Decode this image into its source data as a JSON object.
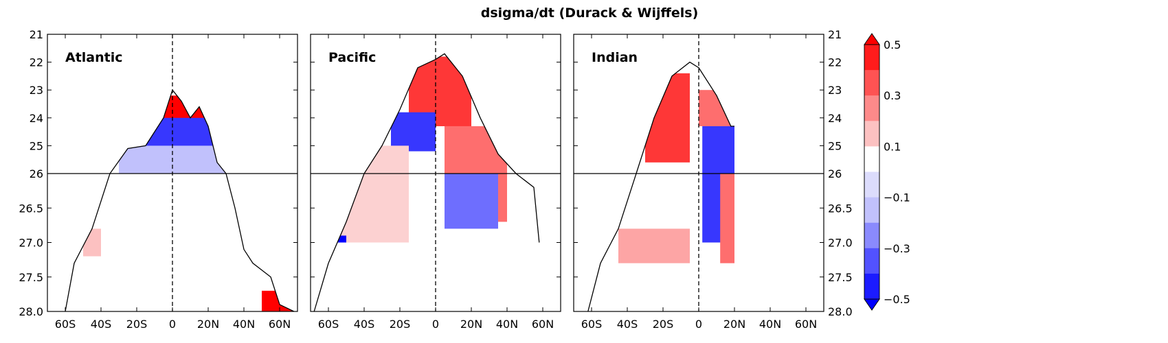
{
  "chart_data": {
    "type": "heatmap",
    "title": "dsigma/dt (Durack & Wijffels)",
    "xlabel": "",
    "ylabel": "",
    "x_ticks": [
      "60S",
      "40S",
      "20S",
      "0",
      "20N",
      "40N",
      "60N"
    ],
    "x_tick_values": [
      -60,
      -40,
      -20,
      0,
      20,
      40,
      60
    ],
    "xlim": [
      -70,
      70
    ],
    "y_ticks_upper": [
      "21",
      "22",
      "23",
      "24",
      "25",
      "26"
    ],
    "y_ticks_lower": [
      "26.5",
      "27.0",
      "27.5",
      "28.0"
    ],
    "y_upper_range": [
      21,
      26
    ],
    "y_lower_range": [
      26,
      28
    ],
    "reference_lines": {
      "vertical_dashed_x": 0,
      "horizontal_y": 26
    },
    "colorbar": {
      "ticks": [
        "0.5",
        "0.3",
        "0.1",
        "−0.1",
        "−0.3",
        "−0.5"
      ],
      "range": [
        -0.5,
        0.5
      ],
      "extend": "both",
      "colormap": "bwr",
      "colors": {
        "neg_strong": "#0000ff",
        "neg_weak": "#dcdcfc",
        "zero": "#ffffff",
        "pos_weak": "#fcdcdc",
        "pos_strong": "#ff0000"
      }
    },
    "panels": [
      {
        "name": "Atlantic",
        "outcrop_max_density": [
          [
            -60,
            28.0
          ],
          [
            -55,
            27.3
          ],
          [
            -45,
            26.8
          ],
          [
            -35,
            26.0
          ],
          [
            -25,
            25.1
          ],
          [
            -15,
            25.0
          ],
          [
            -5,
            24.0
          ],
          [
            0,
            23.0
          ],
          [
            5,
            23.4
          ],
          [
            10,
            24.0
          ],
          [
            15,
            23.6
          ],
          [
            20,
            24.3
          ],
          [
            25,
            25.6
          ],
          [
            30,
            26.0
          ],
          [
            35,
            26.5
          ],
          [
            40,
            27.1
          ],
          [
            45,
            27.3
          ],
          [
            55,
            27.5
          ],
          [
            60,
            27.9
          ],
          [
            68,
            28.0
          ]
        ],
        "features": [
          {
            "lat_range": [
              -5,
              25
            ],
            "dens_range": [
              23.2,
              24.5
            ],
            "value": 0.5
          },
          {
            "lat_range": [
              -15,
              25
            ],
            "dens_range": [
              24.0,
              26.0
            ],
            "value": -0.4
          },
          {
            "lat_range": [
              -30,
              30
            ],
            "dens_range": [
              25.0,
              26.0
            ],
            "value": -0.15
          },
          {
            "lat_range": [
              -50,
              -40
            ],
            "dens_range": [
              26.8,
              27.2
            ],
            "value": 0.15
          },
          {
            "lat_range": [
              50,
              68
            ],
            "dens_range": [
              27.7,
              28.0
            ],
            "value": 0.5
          }
        ]
      },
      {
        "name": "Pacific",
        "outcrop_max_density": [
          [
            -68,
            28.0
          ],
          [
            -60,
            27.3
          ],
          [
            -50,
            26.7
          ],
          [
            -40,
            26.0
          ],
          [
            -30,
            25.0
          ],
          [
            -20,
            23.7
          ],
          [
            -10,
            22.2
          ],
          [
            0,
            21.9
          ],
          [
            5,
            21.7
          ],
          [
            15,
            22.5
          ],
          [
            25,
            24.0
          ],
          [
            35,
            25.3
          ],
          [
            45,
            26.0
          ],
          [
            55,
            26.2
          ],
          [
            58,
            27.0
          ]
        ],
        "features": [
          {
            "lat_range": [
              -15,
              20
            ],
            "dens_range": [
              21.8,
              24.3
            ],
            "value": 0.4
          },
          {
            "lat_range": [
              -25,
              0
            ],
            "dens_range": [
              23.8,
              25.2
            ],
            "value": -0.4
          },
          {
            "lat_range": [
              5,
              40
            ],
            "dens_range": [
              24.3,
              26.7
            ],
            "value": 0.3
          },
          {
            "lat_range": [
              5,
              35
            ],
            "dens_range": [
              26.0,
              26.8
            ],
            "value": -0.3
          },
          {
            "lat_range": [
              -55,
              -15
            ],
            "dens_range": [
              25.0,
              27.0
            ],
            "value": 0.12
          },
          {
            "lat_range": [
              -55,
              -50
            ],
            "dens_range": [
              26.9,
              27.0
            ],
            "value": -0.5
          }
        ]
      },
      {
        "name": "Indian",
        "outcrop_max_density": [
          [
            -62,
            28.0
          ],
          [
            -55,
            27.3
          ],
          [
            -45,
            26.8
          ],
          [
            -35,
            26.0
          ],
          [
            -25,
            24.0
          ],
          [
            -15,
            22.5
          ],
          [
            -5,
            22.0
          ],
          [
            0,
            22.2
          ],
          [
            10,
            23.2
          ],
          [
            18,
            24.3
          ],
          [
            20,
            24.3
          ]
        ],
        "features": [
          {
            "lat_range": [
              -30,
              -5
            ],
            "dens_range": [
              22.4,
              25.6
            ],
            "value": 0.4
          },
          {
            "lat_range": [
              0,
              20
            ],
            "dens_range": [
              23.0,
              24.3
            ],
            "value": 0.3
          },
          {
            "lat_range": [
              2,
              20
            ],
            "dens_range": [
              24.3,
              27.0
            ],
            "value": -0.4
          },
          {
            "lat_range": [
              -45,
              -5
            ],
            "dens_range": [
              26.8,
              27.3
            ],
            "value": 0.2
          },
          {
            "lat_range": [
              12,
              20
            ],
            "dens_range": [
              26.0,
              27.3
            ],
            "value": 0.3
          }
        ]
      }
    ]
  }
}
